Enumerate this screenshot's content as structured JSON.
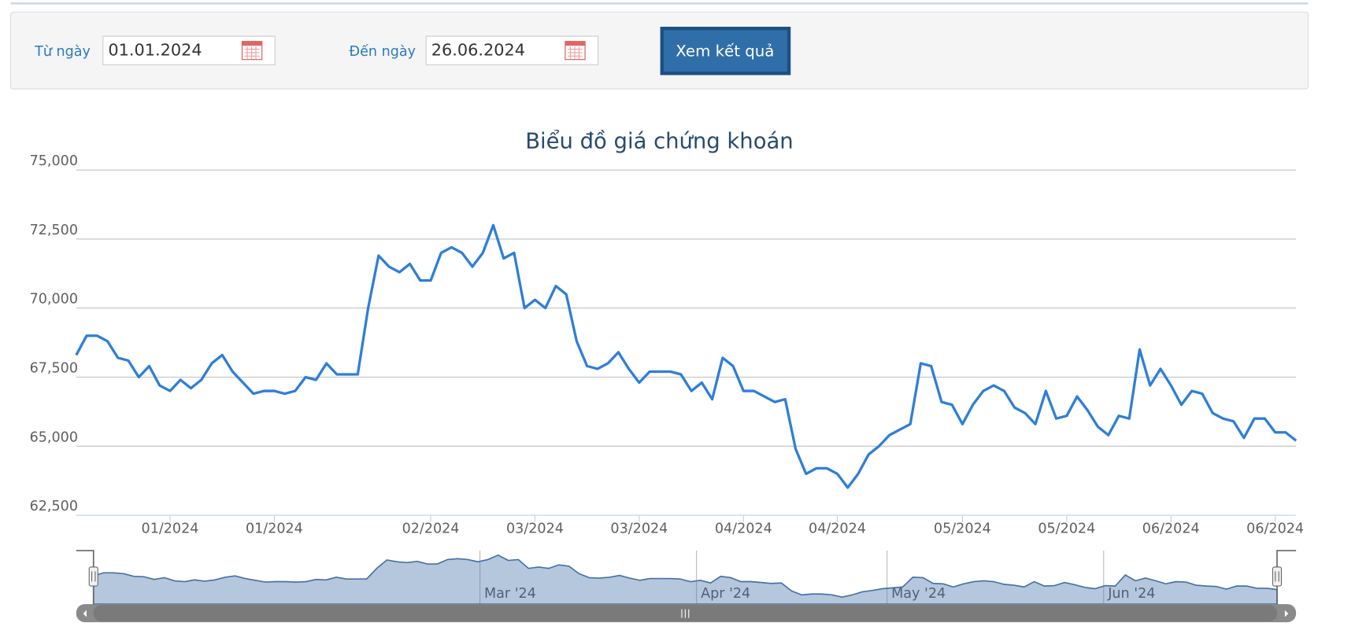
{
  "form": {
    "from_label": "Từ ngày",
    "from_value": "01.01.2024",
    "to_label": "Đến ngày",
    "to_value": "26.06.2024",
    "button": "Xem kết quả"
  },
  "chart_data": {
    "type": "line",
    "title": "Biểu đồ giá chứng khoán",
    "color": "#2f7ed8",
    "grid": true,
    "ylim": [
      62500,
      75000
    ],
    "yticks": [
      {
        "value": 62500,
        "label": "62,500"
      },
      {
        "value": 65000,
        "label": "65,000"
      },
      {
        "value": 67500,
        "label": "67,500"
      },
      {
        "value": 70000,
        "label": "70,000"
      },
      {
        "value": 72500,
        "label": "72,500"
      },
      {
        "value": 75000,
        "label": "75,000"
      }
    ],
    "categories": [
      null,
      null,
      null,
      null,
      null,
      null,
      null,
      null,
      null,
      "01/2024",
      null,
      null,
      null,
      null,
      null,
      null,
      null,
      null,
      null,
      "01/2024",
      null,
      null,
      null,
      null,
      null,
      null,
      null,
      null,
      null,
      null,
      null,
      null,
      null,
      null,
      "02/2024",
      null,
      null,
      null,
      null,
      null,
      null,
      null,
      null,
      null,
      "03/2024",
      null,
      null,
      null,
      null,
      null,
      null,
      null,
      null,
      null,
      "03/2024",
      null,
      null,
      null,
      null,
      null,
      null,
      null,
      null,
      null,
      "04/2024",
      null,
      null,
      null,
      null,
      null,
      null,
      null,
      null,
      "04/2024",
      null,
      null,
      null,
      null,
      null,
      null,
      null,
      null,
      null,
      null,
      null,
      "05/2024",
      null,
      null,
      null,
      null,
      null,
      null,
      null,
      null,
      null,
      "05/2024",
      null,
      null,
      null,
      null,
      null,
      null,
      null,
      null,
      null,
      "06/2024",
      null,
      null,
      null,
      null,
      null,
      null,
      null,
      null,
      null,
      "06/2024",
      null,
      null
    ],
    "values": [
      68300,
      69000,
      69000,
      68800,
      68200,
      68100,
      67500,
      67900,
      67200,
      67000,
      67400,
      67100,
      67400,
      68000,
      68300,
      67700,
      67300,
      66900,
      67000,
      67000,
      66900,
      67000,
      67500,
      67400,
      68000,
      67600,
      67600,
      67600,
      70000,
      71900,
      71500,
      71300,
      71600,
      71000,
      71000,
      72000,
      72200,
      72000,
      71500,
      72000,
      73000,
      71800,
      72000,
      70000,
      70300,
      70000,
      70800,
      70500,
      68800,
      67900,
      67800,
      68000,
      68400,
      67800,
      67300,
      67700,
      67700,
      67700,
      67600,
      67000,
      67300,
      66700,
      68200,
      67900,
      67000,
      67000,
      66800,
      66600,
      66700,
      64900,
      64000,
      64200,
      64200,
      64000,
      63500,
      64000,
      64700,
      65000,
      65400,
      65600,
      65800,
      68000,
      67900,
      66600,
      66500,
      65800,
      66500,
      67000,
      67200,
      67000,
      66400,
      66200,
      65800,
      67000,
      66000,
      66100,
      66800,
      66300,
      65700,
      65400,
      66100,
      66000,
      68500,
      67200,
      67800,
      67200,
      66500,
      67000,
      66900,
      66200,
      66000,
      65900,
      65300,
      66000,
      66000,
      65500,
      65500,
      65200
    ],
    "navigator_labels": [
      "Mar '24",
      "Apr '24",
      "May '24",
      "Jun '24"
    ]
  }
}
